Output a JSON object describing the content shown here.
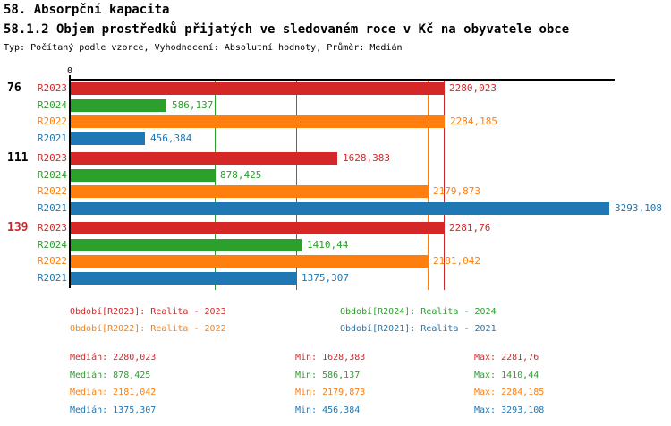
{
  "header": {
    "title1": "58. Absorpční kapacita",
    "title2": "58.1.2 Objem prostředků přijatých ve sledovaném roce v Kč na obyvatele obce",
    "subtitle": "Typ: Počítaný podle vzorce, Vyhodnocení: Absolutní hodnoty, Průměr: Medián"
  },
  "chart_data": {
    "type": "bar",
    "orientation": "horizontal",
    "x_axis": {
      "zero_label": "0",
      "xlim": [
        0,
        3400
      ],
      "grid": "median-lines-only"
    },
    "series_colors": {
      "R2023": "#d62728",
      "R2024": "#2ca02c",
      "R2022": "#ff7f0e",
      "R2021": "#1f77b4"
    },
    "axis_color": "#000000",
    "groups": [
      {
        "label": "76",
        "label_color": "#000000",
        "bars": [
          {
            "series": "R2023",
            "value": 2280.023,
            "label": "2280,023"
          },
          {
            "series": "R2024",
            "value": 586.137,
            "label": "586,137"
          },
          {
            "series": "R2022",
            "value": 2284.185,
            "label": "2284,185"
          },
          {
            "series": "R2021",
            "value": 456.384,
            "label": "456,384"
          }
        ]
      },
      {
        "label": "111",
        "label_color": "#000000",
        "bars": [
          {
            "series": "R2023",
            "value": 1628.383,
            "label": "1628,383"
          },
          {
            "series": "R2024",
            "value": 878.425,
            "label": "878,425"
          },
          {
            "series": "R2022",
            "value": 2179.873,
            "label": "2179,873"
          },
          {
            "series": "R2021",
            "value": 3293.108,
            "label": "3293,108"
          }
        ]
      },
      {
        "label": "139",
        "label_color": "#d62728",
        "bars": [
          {
            "series": "R2023",
            "value": 2281.76,
            "label": "2281,76"
          },
          {
            "series": "R2024",
            "value": 1410.44,
            "label": "1410,44"
          },
          {
            "series": "R2022",
            "value": 2181.042,
            "label": "2181,042"
          },
          {
            "series": "R2021",
            "value": 1375.307,
            "label": "1375,307"
          }
        ]
      }
    ],
    "median_lines": [
      {
        "series": "R2023",
        "value": 2280.023
      },
      {
        "series": "R2024",
        "value": 878.425
      },
      {
        "series": "R2022",
        "value": 2181.042
      },
      {
        "series": "R2021",
        "value": 1375.307
      }
    ]
  },
  "legend": [
    {
      "series": "R2023",
      "label": "Období[R2023]: Realita - 2023",
      "color": "#d62728"
    },
    {
      "series": "R2024",
      "label": "Období[R2024]: Realita - 2024",
      "color": "#2ca02c"
    },
    {
      "series": "R2022",
      "label": "Období[R2022]: Realita - 2022",
      "color": "#ff7f0e"
    },
    {
      "series": "R2021",
      "label": "Období[R2021]: Realita - 2021",
      "color": "#1f77b4"
    }
  ],
  "stats": [
    {
      "series": "R2023",
      "color": "#d62728",
      "median": "Medián: 2280,023",
      "min": "Min: 1628,383",
      "max": "Max: 2281,76"
    },
    {
      "series": "R2024",
      "color": "#2ca02c",
      "median": "Medián: 878,425",
      "min": "Min: 586,137",
      "max": "Max: 1410,44"
    },
    {
      "series": "R2022",
      "color": "#ff7f0e",
      "median": "Medián: 2181,042",
      "min": "Min: 2179,873",
      "max": "Max: 2284,185"
    },
    {
      "series": "R2021",
      "color": "#1f77b4",
      "median": "Medián: 1375,307",
      "min": "Min: 456,384",
      "max": "Max: 3293,108"
    }
  ]
}
